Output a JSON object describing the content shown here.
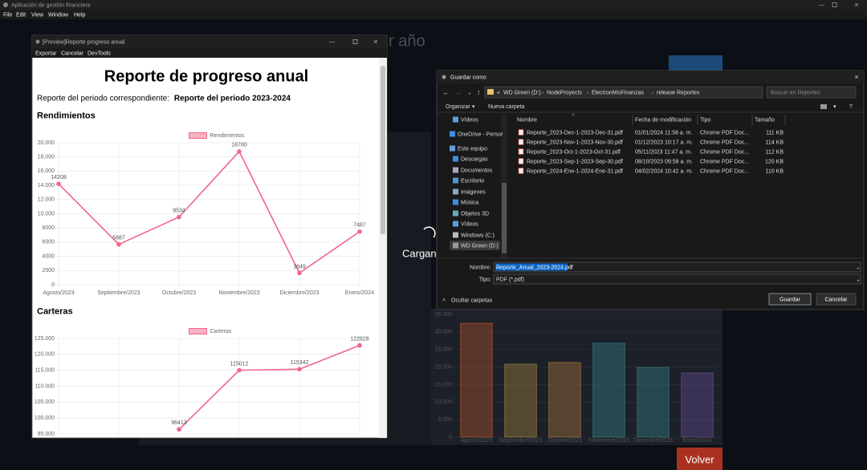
{
  "app": {
    "title": "Aplicación de gestión financiera",
    "menu": [
      "File",
      "Edit",
      "View",
      "Window",
      "Help"
    ],
    "heading_partial": "r año",
    "loading": "Cargan",
    "back_button": "Volver",
    "background_chart": {
      "type": "bar",
      "categories": [
        "Agosto/2023",
        "Septiembre/2023",
        "Octubre/2023",
        "Noviembre/2023",
        "Diciembre/2023",
        "Enero/2024"
      ],
      "values": [
        32500,
        20800,
        21300,
        26800,
        19900,
        18300
      ],
      "colors": [
        "#e0642a",
        "#c8a040",
        "#d09040",
        "#3aa0a0",
        "#3a9a9a",
        "#7a5ab0"
      ],
      "ylim": [
        0,
        35000
      ],
      "yticks": [
        {
          "value": 0,
          "label": "0"
        },
        {
          "value": 5000,
          "label": "5.000"
        },
        {
          "value": 10000,
          "label": "10.000"
        },
        {
          "value": 15000,
          "label": "15.000"
        },
        {
          "value": 20000,
          "label": "20.000"
        },
        {
          "value": 25000,
          "label": "25.000"
        },
        {
          "value": 30000,
          "label": "30.000"
        },
        {
          "value": 35000,
          "label": "35.000"
        }
      ],
      "grid": true
    }
  },
  "preview": {
    "title": "[Preview]Reporte progreso anual",
    "menu": [
      "Exportar",
      "Cancelar",
      "DevTools"
    ],
    "heading": "Reporte de progreso anual",
    "period_label": "Reporte del periodo correspondiente:",
    "period_value": "Reporte del periodo 2023-2024",
    "sections": [
      {
        "title": "Rendimientos",
        "chart": {
          "type": "line",
          "categories": [
            "Agosto/2023",
            "Septiembre/2023",
            "Octubre/2023",
            "Noviembre/2023",
            "Diciembre/2023",
            "Enero/2024"
          ],
          "series": [
            {
              "name": "Rendimientos",
              "color": "#f0668a",
              "values": [
                14208,
                5687,
                9534,
                18780,
                1649,
                7487
              ]
            }
          ],
          "ylim": [
            0,
            20000
          ],
          "yticks": [
            {
              "value": 0,
              "label": "0"
            },
            {
              "value": 2000,
              "label": "2000"
            },
            {
              "value": 4000,
              "label": "4000"
            },
            {
              "value": 6000,
              "label": "6000"
            },
            {
              "value": 8000,
              "label": "8000"
            },
            {
              "value": 10000,
              "label": "10.000"
            },
            {
              "value": 12000,
              "label": "12.000"
            },
            {
              "value": 14000,
              "label": "14.000"
            },
            {
              "value": 16000,
              "label": "16.000"
            },
            {
              "value": 18000,
              "label": "18.000"
            },
            {
              "value": 20000,
              "label": "20.000"
            }
          ],
          "grid": true
        }
      },
      {
        "title": "Carteras",
        "chart": {
          "type": "line",
          "series": [
            {
              "name": "Carteras",
              "color": "#f0668a",
              "values": [
                null,
                null,
                96413,
                115012,
                115342,
                122828
              ]
            }
          ],
          "ylim": [
            95000,
            125000
          ],
          "yticks": [
            {
              "value": 95000,
              "label": "95.000"
            },
            {
              "value": 100000,
              "label": "100.000"
            },
            {
              "value": 105000,
              "label": "105.000"
            },
            {
              "value": 110000,
              "label": "110.000"
            },
            {
              "value": 115000,
              "label": "115.000"
            },
            {
              "value": 120000,
              "label": "120.000"
            },
            {
              "value": 125000,
              "label": "125.000"
            }
          ],
          "grid": true
        }
      }
    ]
  },
  "dialog": {
    "title": "Guardar como",
    "path": [
      "WD Green (D:)",
      "NodeProyects",
      "ElectronMisFinanzas",
      "release",
      "Reportes"
    ],
    "search": "Buscar en Reportes",
    "toolbar": [
      "Organizar",
      "Nueva carpeta"
    ],
    "nav": [
      "Vídeos",
      "OneDrive - Persor",
      "Este equipo",
      "Descargas",
      "Documentos",
      "Escritorio",
      "Imágenes",
      "Música",
      "Objetos 3D",
      "Vídeos",
      "Windows (C:)",
      "WD Green (D:)"
    ],
    "columns": [
      "Nombre",
      "Fecha de modificación",
      "Tipo",
      "Tamaño"
    ],
    "files": [
      [
        "Reporte_2023-Dec-1-2023-Dec-31.pdf",
        "01/01/2024 11:58 a. m.",
        "Chrome PDF Doc...",
        "111 KB"
      ],
      [
        "Reporte_2023-Nov-1-2023-Nov-30.pdf",
        "01/12/2023 10:17 a. m.",
        "Chrome PDF Doc...",
        "114 KB"
      ],
      [
        "Reporte_2023-Oct-1-2023-Oct-31.pdf",
        "05/11/2023 11:47 a. m.",
        "Chrome PDF Doc...",
        "112 KB"
      ],
      [
        "Reporte_2023-Sep-1-2023-Sep-30.pdf",
        "08/10/2023 09:58 a. m.",
        "Chrome PDF Doc...",
        "120 KB"
      ],
      [
        "Reporte_2024-Ene-1-2024-Ene-31.pdf",
        "04/02/2024 10:42 a. m.",
        "Chrome PDF Doc...",
        "110 KB"
      ]
    ],
    "name_label": "Nombre:",
    "name_value": "Reporte_Anual_2023-2024.pdf",
    "type_label": "Tipo:",
    "type_value": "PDF (*.pdf)",
    "hide_folders": "Ocultar carpetas",
    "save": "Guardar",
    "cancel": "Cancelar"
  }
}
